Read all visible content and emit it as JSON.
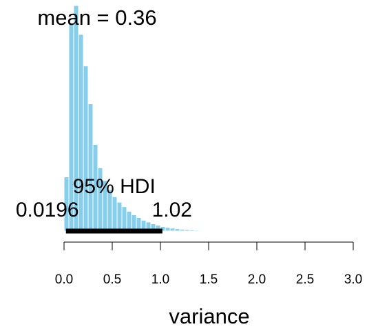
{
  "chart_data": {
    "type": "histogram",
    "xlabel": "variance",
    "annotations": {
      "mean": "mean = 0.36",
      "hdi": "95% HDI"
    },
    "hdi": [
      0.0196,
      1.02
    ],
    "bins": [
      0,
      0.05,
      0.1,
      0.15,
      0.2,
      0.25,
      0.3,
      0.35,
      0.4,
      0.45,
      0.5,
      0.55,
      0.6,
      0.65,
      0.7,
      0.75,
      0.8,
      0.85,
      0.9,
      0.95,
      1.0,
      1.05,
      1.1,
      1.15,
      1.2,
      1.25,
      1.3,
      1.35,
      1.4,
      1.45,
      1.5,
      1.55,
      1.6,
      1.65,
      1.7,
      1.75,
      1.8
    ],
    "values": [
      0.6,
      2.3,
      2.5,
      2.18,
      1.83,
      1.41,
      0.96,
      0.7,
      0.56,
      0.46,
      0.38,
      0.32,
      0.27,
      0.22,
      0.18,
      0.15,
      0.12,
      0.1,
      0.08,
      0.065,
      0.05,
      0.04,
      0.032,
      0.026,
      0.02,
      0.016,
      0.013,
      0.01,
      0.008,
      0.006,
      0.005,
      0.004,
      0.003,
      0.0025,
      0.002,
      0.0015
    ],
    "color": "#87ceeb",
    "xlim": [
      0,
      3
    ],
    "ylim": [
      0,
      2.5
    ],
    "xticks": [
      {
        "value": 0,
        "label": "0.0"
      },
      0.5,
      {
        "value": 1,
        "label": "1.0"
      },
      1.5,
      {
        "value": 2,
        "label": "2.0"
      },
      2.5,
      {
        "value": 3,
        "label": "3.0"
      }
    ]
  }
}
